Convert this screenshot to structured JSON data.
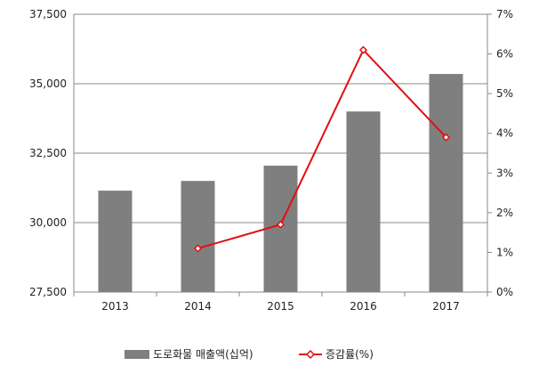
{
  "chart_data": {
    "type": "bar",
    "categories": [
      "2013",
      "2014",
      "2015",
      "2016",
      "2017"
    ],
    "series": [
      {
        "name": "도로화물 매출액(십억)",
        "type": "bar",
        "axis": "left",
        "color": "#7f7f7f",
        "values": [
          31150,
          31500,
          32050,
          34000,
          35350
        ]
      },
      {
        "name": "증감률(%)",
        "type": "line",
        "axis": "right",
        "color": "#e01010",
        "values": [
          null,
          1.1,
          1.7,
          6.1,
          3.9
        ]
      }
    ],
    "y_left": {
      "min": 27500,
      "max": 37500,
      "ticks": [
        27500,
        30000,
        32500,
        35000,
        37500
      ],
      "tick_labels": [
        "27,500",
        "30,000",
        "32,500",
        "35,000",
        "37,500"
      ]
    },
    "y_right": {
      "min": 0,
      "max": 7,
      "ticks": [
        0,
        1,
        2,
        3,
        4,
        5,
        6,
        7
      ],
      "tick_labels": [
        "0%",
        "1%",
        "2%",
        "3%",
        "4%",
        "5%",
        "6%",
        "7%"
      ]
    },
    "grid": true,
    "legend_position": "bottom"
  }
}
